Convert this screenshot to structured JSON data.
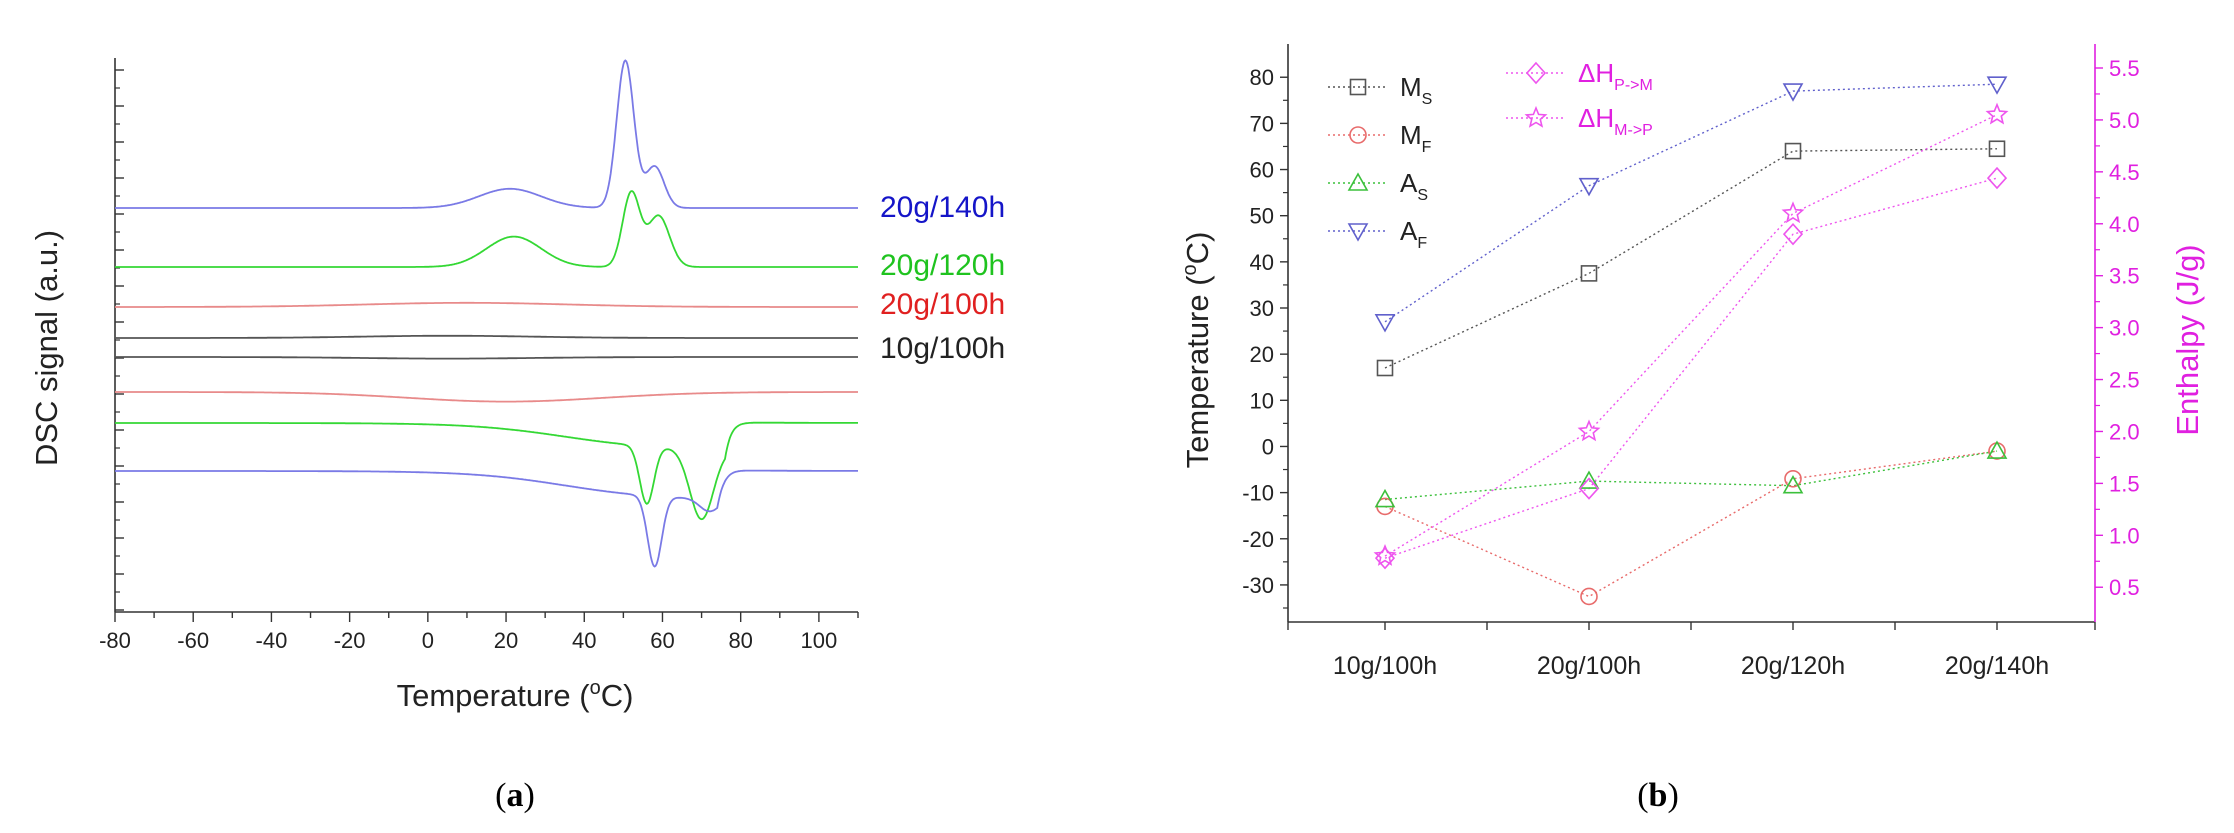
{
  "figure": {
    "panel_a_label": "a",
    "panel_b_label": "b"
  },
  "chart_data": [
    {
      "type": "line",
      "panel": "a",
      "xlabel": "Temperature (°C)",
      "xlabel_base": "Temperature (",
      "xlabel_sup": "o",
      "xlabel_end": "C)",
      "ylabel": "DSC signal (a.u.)",
      "xlim": [
        -80,
        110
      ],
      "x_ticks": [
        -80,
        -60,
        -40,
        -20,
        0,
        20,
        40,
        60,
        80,
        100
      ],
      "y_ticks_shown": false,
      "series": [
        {
          "name": "20g/140h",
          "color": "#7a7ae6",
          "label_color": "#1515c8",
          "direction": "heating",
          "baseline": 0.2,
          "peaks": [
            [
              21,
              8,
              0.6
            ],
            [
              50.5,
              2.2,
              4.6
            ],
            [
              58,
              2.4,
              1.3
            ]
          ]
        },
        {
          "name": "20g/120h",
          "color": "#34d834",
          "label_color": "#1fc31f",
          "direction": "heating",
          "baseline": 0.2,
          "peaks": [
            [
              22,
              7,
              0.95
            ],
            [
              52,
              2.2,
              2.3
            ],
            [
              59,
              2.8,
              1.6
            ]
          ]
        },
        {
          "name": "20g/100h",
          "color": "#e88a8a",
          "label_color": "#e02020",
          "direction": "heating",
          "baseline": 0.2,
          "peaks": [
            [
              10,
              26,
              0.13
            ]
          ]
        },
        {
          "name": "10g/100h",
          "color": "#555555",
          "label_color": "#222222",
          "direction": "heating",
          "baseline": 0.2,
          "peaks": [
            [
              5,
              22,
              0.07
            ]
          ]
        },
        {
          "name": "10g/100h",
          "color": "#555555",
          "direction": "cooling",
          "baseline": 0.2,
          "peaks": [
            [
              5,
              22,
              -0.05
            ]
          ]
        },
        {
          "name": "20g/100h",
          "color": "#e88a8a",
          "direction": "cooling",
          "baseline": 0.2,
          "peaks": [
            [
              20,
              25,
              -0.3
            ]
          ]
        },
        {
          "name": "20g/120h",
          "color": "#34d834",
          "direction": "cooling",
          "baseline": 0.2,
          "peaks": [
            [
              56,
              1.8,
              -1.8
            ],
            [
              70,
              3.0,
              -2.2
            ]
          ]
        },
        {
          "name": "20g/140h",
          "color": "#7a7ae6",
          "direction": "cooling",
          "baseline": 0.2,
          "peaks": [
            [
              58,
              1.8,
              -2.2
            ],
            [
              72,
              2.5,
              -0.4
            ]
          ]
        }
      ]
    },
    {
      "type": "scatter-line",
      "panel": "b",
      "categories": [
        "10g/100h",
        "20g/100h",
        "20g/120h",
        "20g/140h"
      ],
      "ylabel": "Temperature (°C)",
      "ylabel_base": "Temperature (",
      "ylabel_sup": "o",
      "ylabel_end": "C)",
      "y2label": "Enthalpy (J/g)",
      "ylim": [
        -35,
        82
      ],
      "y_ticks": [
        -30,
        -20,
        -10,
        0,
        10,
        20,
        30,
        40,
        50,
        60,
        70,
        80
      ],
      "y2lim": [
        0.3,
        5.5
      ],
      "y2_ticks": [
        "0.5",
        "1.0",
        "1.5",
        "2.0",
        "2.5",
        "3.0",
        "3.5",
        "4.0",
        "4.5",
        "5.0",
        "5.5"
      ],
      "series": [
        {
          "name": "M",
          "sub": "S",
          "marker": "square",
          "color": "#555555",
          "axis": "left",
          "values": [
            17,
            37.5,
            64,
            64.5
          ]
        },
        {
          "name": "M",
          "sub": "F",
          "marker": "circle",
          "color": "#e86b6b",
          "axis": "left",
          "values": [
            -13,
            -32.5,
            -7,
            -1
          ]
        },
        {
          "name": "A",
          "sub": "S",
          "marker": "triangle-up",
          "color": "#3cc03c",
          "axis": "left",
          "values": [
            -11.5,
            -7.5,
            -8.5,
            -1
          ]
        },
        {
          "name": "A",
          "sub": "F",
          "marker": "triangle-down",
          "color": "#6060cc",
          "axis": "left",
          "values": [
            27,
            56.5,
            77,
            78.5
          ]
        },
        {
          "name": "ΔH",
          "sub": "P->M",
          "marker": "diamond",
          "color": "#ee55ee",
          "axis": "right",
          "values": [
            0.78,
            1.45,
            3.9,
            4.44
          ]
        },
        {
          "name": "ΔH",
          "sub": "M->P",
          "marker": "star",
          "color": "#ee55ee",
          "axis": "right",
          "values": [
            0.8,
            2.0,
            4.1,
            5.05
          ]
        }
      ]
    }
  ]
}
